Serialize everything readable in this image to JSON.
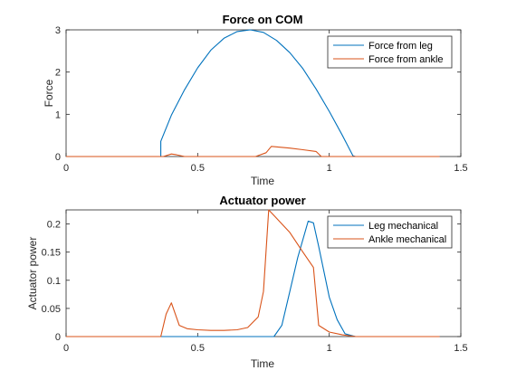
{
  "chart_data": [
    {
      "type": "line",
      "title": "Force on COM",
      "xlabel": "Time",
      "ylabel": "Force",
      "xlim": [
        0,
        1.5
      ],
      "ylim": [
        0,
        3
      ],
      "xticks": [
        0,
        0.5,
        1,
        1.5
      ],
      "xtick_labels": [
        "0",
        "0.5",
        "1",
        "1.5"
      ],
      "yticks": [
        0,
        1,
        2,
        3
      ],
      "ytick_labels": [
        "0",
        "1",
        "2",
        "3"
      ],
      "grid": false,
      "legend_position": "top-right",
      "series": [
        {
          "name": "Force from leg",
          "color": "#0072BD",
          "x": [
            0,
            0.36,
            0.36,
            0.4,
            0.45,
            0.5,
            0.55,
            0.6,
            0.65,
            0.7,
            0.75,
            0.8,
            0.85,
            0.9,
            0.95,
            1.0,
            1.05,
            1.09,
            1.1,
            1.42
          ],
          "y": [
            0,
            0,
            0.36,
            0.98,
            1.58,
            2.1,
            2.52,
            2.8,
            2.96,
            3.0,
            2.94,
            2.75,
            2.46,
            2.08,
            1.6,
            1.07,
            0.5,
            0.02,
            0,
            0
          ]
        },
        {
          "name": "Force from ankle",
          "color": "#D95319",
          "x": [
            0,
            0.37,
            0.4,
            0.42,
            0.45,
            0.72,
            0.76,
            0.78,
            0.85,
            0.9,
            0.95,
            0.97,
            1.42
          ],
          "y": [
            0,
            0,
            0.06,
            0.04,
            0,
            0,
            0.09,
            0.24,
            0.2,
            0.16,
            0.12,
            0,
            0
          ]
        }
      ]
    },
    {
      "type": "line",
      "title": "Actuator power",
      "xlabel": "Time",
      "ylabel": "Actuator power",
      "xlim": [
        0,
        1.5
      ],
      "ylim": [
        0,
        0.225
      ],
      "xticks": [
        0,
        0.5,
        1,
        1.5
      ],
      "xtick_labels": [
        "0",
        "0.5",
        "1",
        "1.5"
      ],
      "yticks": [
        0,
        0.05,
        0.1,
        0.15,
        0.2
      ],
      "ytick_labels": [
        "0",
        "0.05",
        "0.1",
        "0.15",
        "0.2"
      ],
      "grid": false,
      "legend_position": "top-right",
      "series": [
        {
          "name": "Leg mechanical",
          "color": "#0072BD",
          "x": [
            0,
            0.36,
            0.79,
            0.82,
            0.85,
            0.88,
            0.92,
            0.94,
            0.96,
            1.0,
            1.03,
            1.06,
            1.1,
            1.42
          ],
          "y": [
            0,
            0,
            0,
            0.02,
            0.08,
            0.14,
            0.205,
            0.202,
            0.16,
            0.07,
            0.03,
            0.005,
            0,
            0
          ]
        },
        {
          "name": "Ankle mechanical",
          "color": "#D95319",
          "x": [
            0,
            0.36,
            0.38,
            0.4,
            0.43,
            0.46,
            0.5,
            0.55,
            0.6,
            0.65,
            0.69,
            0.73,
            0.75,
            0.77,
            0.8,
            0.85,
            0.9,
            0.94,
            0.96,
            1.0,
            1.05,
            1.1,
            1.42
          ],
          "y": [
            0,
            0,
            0.04,
            0.06,
            0.02,
            0.014,
            0.012,
            0.011,
            0.011,
            0.012,
            0.016,
            0.035,
            0.08,
            0.225,
            0.21,
            0.185,
            0.15,
            0.123,
            0.02,
            0.008,
            0.003,
            0,
            0
          ]
        }
      ]
    }
  ]
}
